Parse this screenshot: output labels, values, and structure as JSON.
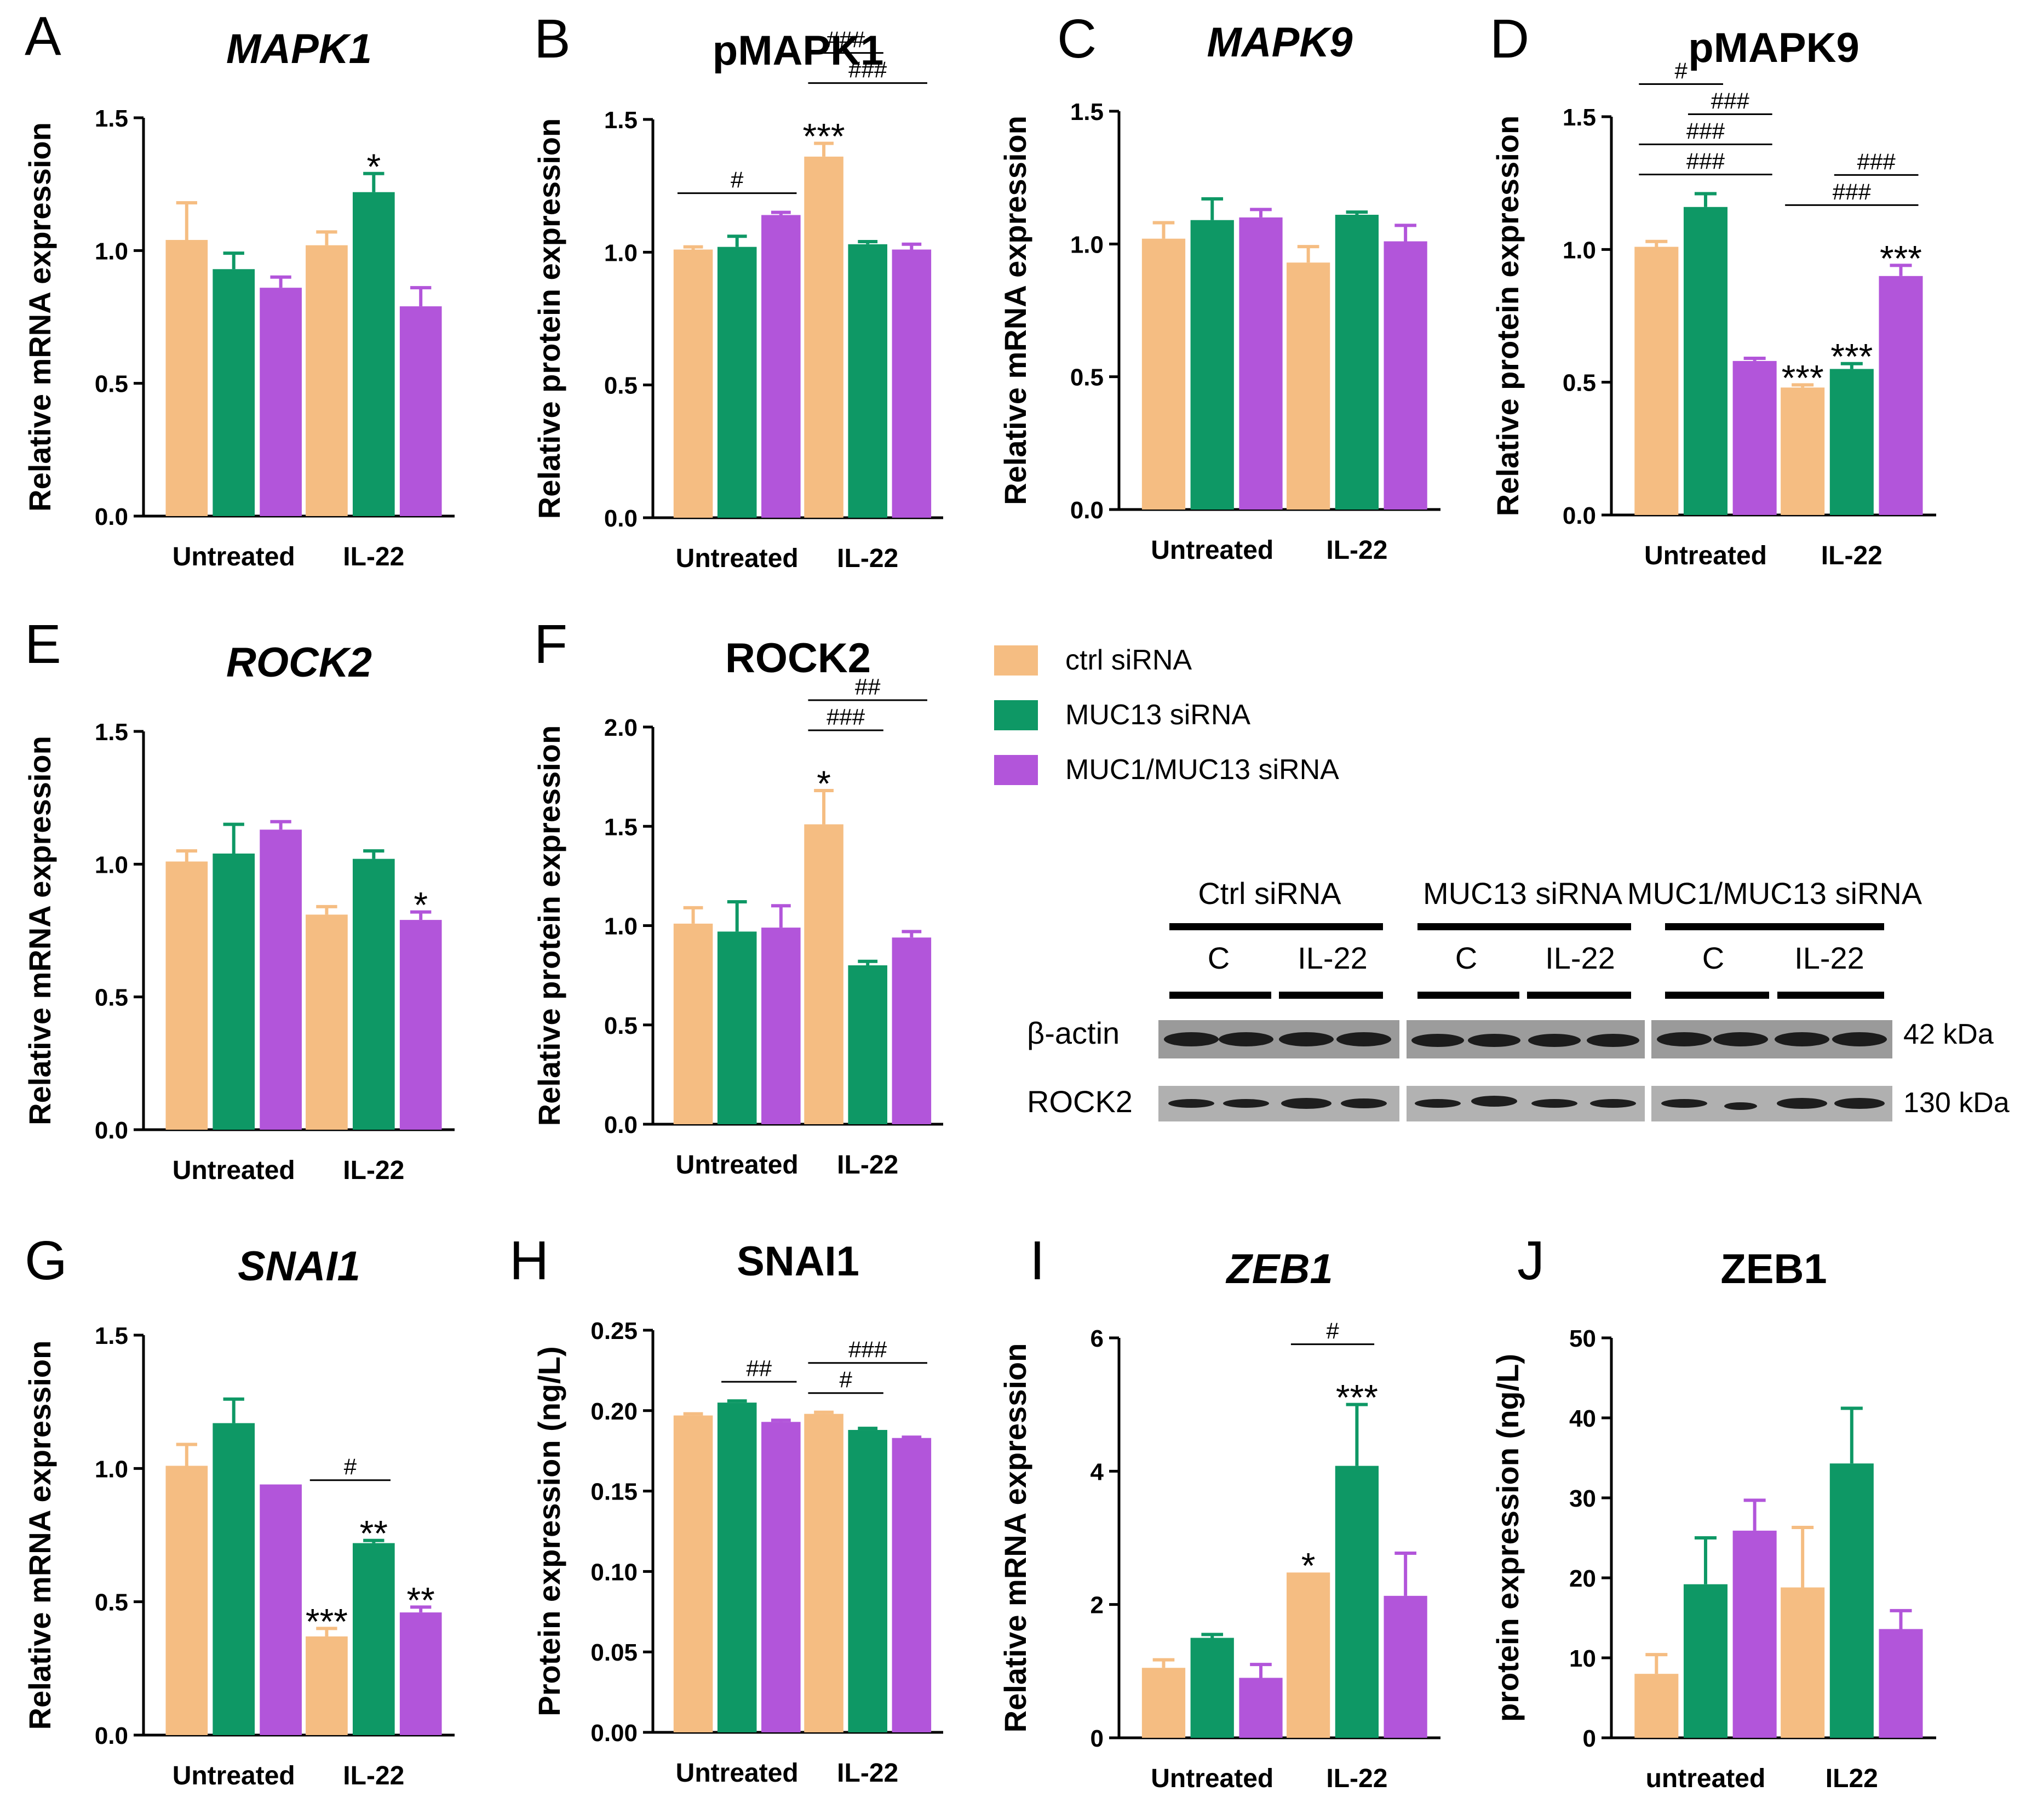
{
  "colors": {
    "ctrl": "#F5BD82",
    "muc13": "#0E9865",
    "muc1muc13": "#B255DA",
    "axis": "#000000"
  },
  "legend": {
    "items": [
      {
        "label": "ctrl siRNA",
        "color": "#F5BD82"
      },
      {
        "label": "MUC13 siRNA",
        "color": "#0E9865"
      },
      {
        "label": "MUC1/MUC13 siRNA",
        "color": "#B255DA"
      }
    ]
  },
  "chart_data": [
    {
      "panel": "A",
      "title": "MAPK1",
      "title_italic": true,
      "type": "bar",
      "ylabel": "Relative mRNA expression",
      "ylim": [
        0,
        1.5
      ],
      "yticks": [
        "0.0",
        "0.5",
        "1.0",
        "1.5"
      ],
      "categories": [
        "Untreated",
        "IL-22"
      ],
      "series": [
        {
          "name": "ctrl siRNA",
          "values": [
            1.04,
            1.02
          ],
          "errors": [
            0.14,
            0.05
          ]
        },
        {
          "name": "MUC13 siRNA",
          "values": [
            0.93,
            1.22
          ],
          "errors": [
            0.06,
            0.07
          ]
        },
        {
          "name": "MUC1/MUC13 siRNA",
          "values": [
            0.86,
            0.79
          ],
          "errors": [
            0.04,
            0.07
          ]
        }
      ],
      "annotations": [
        {
          "cat": 1,
          "series": 1,
          "text": "*"
        }
      ],
      "brackets": []
    },
    {
      "panel": "B",
      "title": "pMAPK1",
      "title_italic": false,
      "type": "bar",
      "ylabel": "Relative protein expression",
      "ylim": [
        0,
        1.5
      ],
      "yticks": [
        "0.0",
        "0.5",
        "1.0",
        "1.5"
      ],
      "categories": [
        "Untreated",
        "IL-22"
      ],
      "series": [
        {
          "name": "ctrl siRNA",
          "values": [
            1.01,
            1.36
          ],
          "errors": [
            0.01,
            0.05
          ]
        },
        {
          "name": "MUC13 siRNA",
          "values": [
            1.02,
            1.03
          ],
          "errors": [
            0.04,
            0.01
          ]
        },
        {
          "name": "MUC1/MUC13 siRNA",
          "values": [
            1.14,
            1.01
          ],
          "errors": [
            0.01,
            0.02
          ]
        }
      ],
      "annotations": [
        {
          "cat": 1,
          "series": 0,
          "text": "***"
        }
      ],
      "brackets": [
        {
          "from": [
            0,
            0
          ],
          "to": [
            0,
            2
          ],
          "text": "#",
          "level": 0
        },
        {
          "from": [
            1,
            0
          ],
          "to": [
            1,
            2
          ],
          "text": "###",
          "level": 0
        },
        {
          "from": [
            1,
            0
          ],
          "to": [
            1,
            1
          ],
          "text": "###",
          "level": 1
        }
      ]
    },
    {
      "panel": "C",
      "title": "MAPK9",
      "title_italic": true,
      "type": "bar",
      "ylabel": "Relative mRNA expression",
      "ylim": [
        0,
        1.5
      ],
      "yticks": [
        "0.0",
        "0.5",
        "1.0",
        "1.5"
      ],
      "categories": [
        "Untreated",
        "IL-22"
      ],
      "series": [
        {
          "name": "ctrl siRNA",
          "values": [
            1.02,
            0.93
          ],
          "errors": [
            0.06,
            0.06
          ]
        },
        {
          "name": "MUC13 siRNA",
          "values": [
            1.09,
            1.11
          ],
          "errors": [
            0.08,
            0.01
          ]
        },
        {
          "name": "MUC1/MUC13 siRNA",
          "values": [
            1.1,
            1.01
          ],
          "errors": [
            0.03,
            0.06
          ]
        }
      ],
      "annotations": [],
      "brackets": []
    },
    {
      "panel": "D",
      "title": "pMAPK9",
      "title_italic": false,
      "type": "bar",
      "ylabel": "Relative protein expression",
      "ylim": [
        0,
        1.5
      ],
      "yticks": [
        "0.0",
        "0.5",
        "1.0",
        "1.5"
      ],
      "categories": [
        "Untreated",
        "IL-22"
      ],
      "series": [
        {
          "name": "ctrl siRNA",
          "values": [
            1.01,
            0.48
          ],
          "errors": [
            0.02,
            0.01
          ]
        },
        {
          "name": "MUC13 siRNA",
          "values": [
            1.16,
            0.55
          ],
          "errors": [
            0.05,
            0.02
          ]
        },
        {
          "name": "MUC1/MUC13 siRNA",
          "values": [
            0.58,
            0.9
          ],
          "errors": [
            0.01,
            0.04
          ]
        }
      ],
      "annotations": [
        {
          "cat": 1,
          "series": 0,
          "text": "***"
        },
        {
          "cat": 1,
          "series": 1,
          "text": "***"
        },
        {
          "cat": 1,
          "series": 2,
          "text": "***"
        }
      ],
      "brackets": [
        {
          "from": [
            0,
            0
          ],
          "to": [
            0,
            2
          ],
          "text": "###",
          "level": 0
        },
        {
          "from": [
            0,
            0
          ],
          "to": [
            0,
            2
          ],
          "text": "###",
          "level": 1
        },
        {
          "from": [
            0,
            1
          ],
          "to": [
            0,
            2
          ],
          "text": "###",
          "level": 2
        },
        {
          "from": [
            1,
            0
          ],
          "to": [
            1,
            2
          ],
          "text": "###",
          "level": 0
        },
        {
          "from": [
            1,
            1
          ],
          "to": [
            1,
            2
          ],
          "text": "###",
          "level": 1
        },
        {
          "from": [
            0,
            0
          ],
          "to": [
            0,
            1
          ],
          "text": "#",
          "level": 3
        }
      ]
    },
    {
      "panel": "E",
      "title": "ROCK2",
      "title_italic": true,
      "type": "bar",
      "ylabel": "Relative mRNA expression",
      "ylim": [
        0,
        1.5
      ],
      "yticks": [
        "0.0",
        "0.5",
        "1.0",
        "1.5"
      ],
      "categories": [
        "Untreated",
        "IL-22"
      ],
      "series": [
        {
          "name": "ctrl siRNA",
          "values": [
            1.01,
            0.81
          ],
          "errors": [
            0.04,
            0.03
          ]
        },
        {
          "name": "MUC13 siRNA",
          "values": [
            1.04,
            1.02
          ],
          "errors": [
            0.11,
            0.03
          ]
        },
        {
          "name": "MUC1/MUC13 siRNA",
          "values": [
            1.13,
            0.79
          ],
          "errors": [
            0.03,
            0.03
          ]
        }
      ],
      "annotations": [
        {
          "cat": 1,
          "series": 2,
          "text": "*"
        }
      ],
      "brackets": []
    },
    {
      "panel": "F",
      "title": "ROCK2",
      "title_italic": false,
      "type": "bar",
      "ylabel": "Relative protein expression",
      "ylim": [
        0,
        2.0
      ],
      "yticks": [
        "0.0",
        "0.5",
        "1.0",
        "1.5",
        "2.0"
      ],
      "categories": [
        "Untreated",
        "IL-22"
      ],
      "series": [
        {
          "name": "ctrl siRNA",
          "values": [
            1.01,
            1.51
          ],
          "errors": [
            0.08,
            0.17
          ]
        },
        {
          "name": "MUC13 siRNA",
          "values": [
            0.97,
            0.8
          ],
          "errors": [
            0.15,
            0.02
          ]
        },
        {
          "name": "MUC1/MUC13 siRNA",
          "values": [
            0.99,
            0.94
          ],
          "errors": [
            0.11,
            0.03
          ]
        }
      ],
      "annotations": [
        {
          "cat": 1,
          "series": 0,
          "text": "*"
        }
      ],
      "brackets": [
        {
          "from": [
            1,
            0
          ],
          "to": [
            1,
            1
          ],
          "text": "###",
          "level": 0
        },
        {
          "from": [
            1,
            0
          ],
          "to": [
            1,
            2
          ],
          "text": "##",
          "level": 1
        }
      ]
    },
    {
      "panel": "G",
      "title": "SNAI1",
      "title_italic": true,
      "type": "bar",
      "ylabel": "Relative mRNA expression",
      "ylim": [
        0,
        1.5
      ],
      "yticks": [
        "0.0",
        "0.5",
        "1.0",
        "1.5"
      ],
      "categories": [
        "Untreated",
        "IL-22"
      ],
      "series": [
        {
          "name": "ctrl siRNA",
          "values": [
            1.01,
            0.37
          ],
          "errors": [
            0.08,
            0.03
          ]
        },
        {
          "name": "MUC13 siRNA",
          "values": [
            1.17,
            0.72
          ],
          "errors": [
            0.09,
            0.01
          ]
        },
        {
          "name": "MUC1/MUC13 siRNA",
          "values": [
            0.94,
            0.46
          ],
          "errors": [
            0.0,
            0.02
          ]
        }
      ],
      "annotations": [
        {
          "cat": 1,
          "series": 0,
          "text": "***"
        },
        {
          "cat": 1,
          "series": 1,
          "text": "**"
        },
        {
          "cat": 1,
          "series": 2,
          "text": "**"
        }
      ],
      "brackets": [
        {
          "from": [
            1,
            0
          ],
          "to": [
            1,
            1
          ],
          "text": "#",
          "level": 0
        }
      ]
    },
    {
      "panel": "H",
      "title": "SNAI1",
      "title_italic": false,
      "type": "bar",
      "ylabel": "Protein expression (ng/L)",
      "ylim": [
        0,
        0.25
      ],
      "yticks": [
        "0.00",
        "0.05",
        "0.10",
        "0.15",
        "0.20",
        "0.25"
      ],
      "categories": [
        "Untreated",
        "IL-22"
      ],
      "series": [
        {
          "name": "ctrl siRNA",
          "values": [
            0.197,
            0.198
          ],
          "errors": [
            0.001,
            0.001
          ]
        },
        {
          "name": "MUC13 siRNA",
          "values": [
            0.205,
            0.188
          ],
          "errors": [
            0.001,
            0.001
          ]
        },
        {
          "name": "MUC1/MUC13 siRNA",
          "values": [
            0.193,
            0.183
          ],
          "errors": [
            0.001,
            0.0005
          ]
        }
      ],
      "annotations": [],
      "brackets": [
        {
          "from": [
            0,
            1
          ],
          "to": [
            0,
            2
          ],
          "text": "##",
          "level": 0
        },
        {
          "from": [
            1,
            0
          ],
          "to": [
            1,
            1
          ],
          "text": "#",
          "level": 0
        },
        {
          "from": [
            1,
            0
          ],
          "to": [
            1,
            2
          ],
          "text": "###",
          "level": 1
        }
      ]
    },
    {
      "panel": "I",
      "title": "ZEB1",
      "title_italic": true,
      "type": "bar",
      "ylabel": "Relative mRNA expression",
      "ylim": [
        0,
        6
      ],
      "yticks": [
        "0",
        "2",
        "4",
        "6"
      ],
      "categories": [
        "Untreated",
        "IL-22"
      ],
      "series": [
        {
          "name": "ctrl siRNA",
          "values": [
            1.05,
            2.48
          ],
          "errors": [
            0.12,
            0.0
          ]
        },
        {
          "name": "MUC13 siRNA",
          "values": [
            1.5,
            4.08
          ],
          "errors": [
            0.05,
            0.92
          ]
        },
        {
          "name": "MUC1/MUC13 siRNA",
          "values": [
            0.9,
            2.13
          ],
          "errors": [
            0.2,
            0.64
          ]
        }
      ],
      "annotations": [
        {
          "cat": 1,
          "series": 0,
          "text": "*"
        },
        {
          "cat": 1,
          "series": 1,
          "text": "***"
        }
      ],
      "brackets": [
        {
          "from": [
            1,
            0
          ],
          "to": [
            1,
            1
          ],
          "text": "#",
          "level": 0
        }
      ]
    },
    {
      "panel": "J",
      "title": "ZEB1",
      "title_italic": false,
      "type": "bar",
      "ylabel": "protein expression (ng/L)",
      "ylim": [
        0,
        50
      ],
      "yticks": [
        "0",
        "10",
        "20",
        "30",
        "40",
        "50"
      ],
      "categories": [
        "untreated",
        "IL22"
      ],
      "series": [
        {
          "name": "ctrl siRNA",
          "values": [
            8,
            18.8
          ],
          "errors": [
            2.4,
            7.5
          ]
        },
        {
          "name": "MUC13 siRNA",
          "values": [
            19.2,
            34.3
          ],
          "errors": [
            5.8,
            6.9
          ]
        },
        {
          "name": "MUC1/MUC13 siRNA",
          "values": [
            25.9,
            13.6
          ],
          "errors": [
            3.8,
            2.3
          ]
        }
      ],
      "annotations": [],
      "brackets": []
    }
  ],
  "western_blot": {
    "groups": [
      "Ctrl siRNA",
      "MUC13 siRNA",
      "MUC1/MUC13 siRNA"
    ],
    "conditions": [
      "C",
      "IL-22"
    ],
    "rows": [
      {
        "protein": "β-actin",
        "size": "42 kDa"
      },
      {
        "protein": "ROCK2",
        "size": "130 kDa"
      }
    ]
  }
}
